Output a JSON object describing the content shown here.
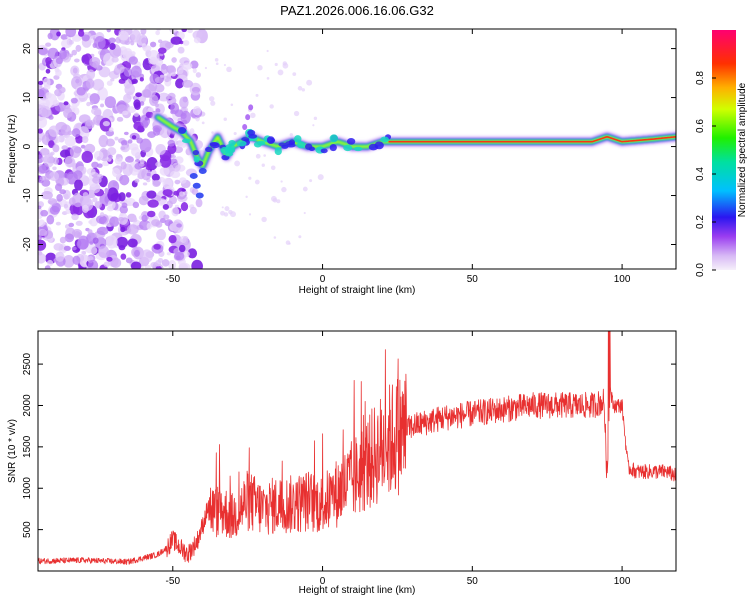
{
  "title": "PAZ1.2026.006.16.06.G32",
  "colors": {
    "snr_line": "#e83030",
    "axis": "#000000",
    "background": "#ffffff"
  },
  "chart_data": [
    {
      "type": "heatmap",
      "title": "PAZ1.2026.006.16.06.G32",
      "xlabel": "Height of straight line (km)",
      "ylabel": "Frequency (Hz)",
      "xlim": [
        -95,
        118
      ],
      "ylim": [
        -25,
        24
      ],
      "xticks": [
        -50,
        0,
        50,
        100
      ],
      "yticks": [
        -20,
        -10,
        0,
        10,
        20
      ],
      "ridge": {
        "description": "dominant frequency track vs height",
        "x": [
          -55,
          -50,
          -47,
          -44,
          -42,
          -40,
          -38,
          -35,
          -32,
          -30,
          -27,
          -24,
          -20,
          -15,
          -10,
          -5,
          0,
          5,
          10,
          15,
          20,
          30,
          50,
          70,
          90,
          95,
          100,
          110,
          118
        ],
        "y": [
          6,
          4,
          3,
          1,
          -2,
          -4,
          -1,
          2,
          -2,
          0,
          1,
          2,
          1,
          0,
          1,
          0,
          0,
          1,
          0,
          0,
          1,
          1,
          1,
          1,
          1,
          2,
          1,
          1.5,
          2
        ]
      },
      "colorbar": {
        "label": "Normalized spectral amplitude",
        "range": [
          0,
          1
        ],
        "ticks": [
          "0.0",
          "0.2",
          "0.4",
          "0.6",
          "0.8"
        ]
      }
    },
    {
      "type": "line",
      "xlabel": "Height of straight line (km)",
      "ylabel": "SNR (10 * v/v)",
      "xlim": [
        -95,
        118
      ],
      "ylim": [
        0,
        2900
      ],
      "xticks": [
        -50,
        0,
        50,
        100
      ],
      "yticks": [
        500,
        1000,
        1500,
        2000,
        2500
      ],
      "series": [
        {
          "name": "SNR",
          "color": "#e83030",
          "x": [
            -95,
            -80,
            -65,
            -55,
            -52,
            -50,
            -48,
            -45,
            -42,
            -40,
            -38,
            -36,
            -34,
            -30,
            -25,
            -20,
            -15,
            -10,
            -5,
            0,
            5,
            10,
            15,
            20,
            25,
            30,
            40,
            50,
            60,
            70,
            80,
            90,
            94,
            95,
            96,
            97,
            100,
            102,
            105,
            110,
            112,
            115,
            118
          ],
          "y": [
            120,
            130,
            110,
            200,
            280,
            380,
            300,
            200,
            350,
            550,
            800,
            700,
            750,
            650,
            850,
            750,
            800,
            800,
            850,
            800,
            950,
            1100,
            1300,
            1500,
            1650,
            1750,
            1850,
            1900,
            1950,
            2000,
            2000,
            2000,
            2050,
            1100,
            2200,
            2000,
            2000,
            1250,
            1200,
            1200,
            1200,
            1200,
            1150
          ]
        }
      ]
    }
  ]
}
